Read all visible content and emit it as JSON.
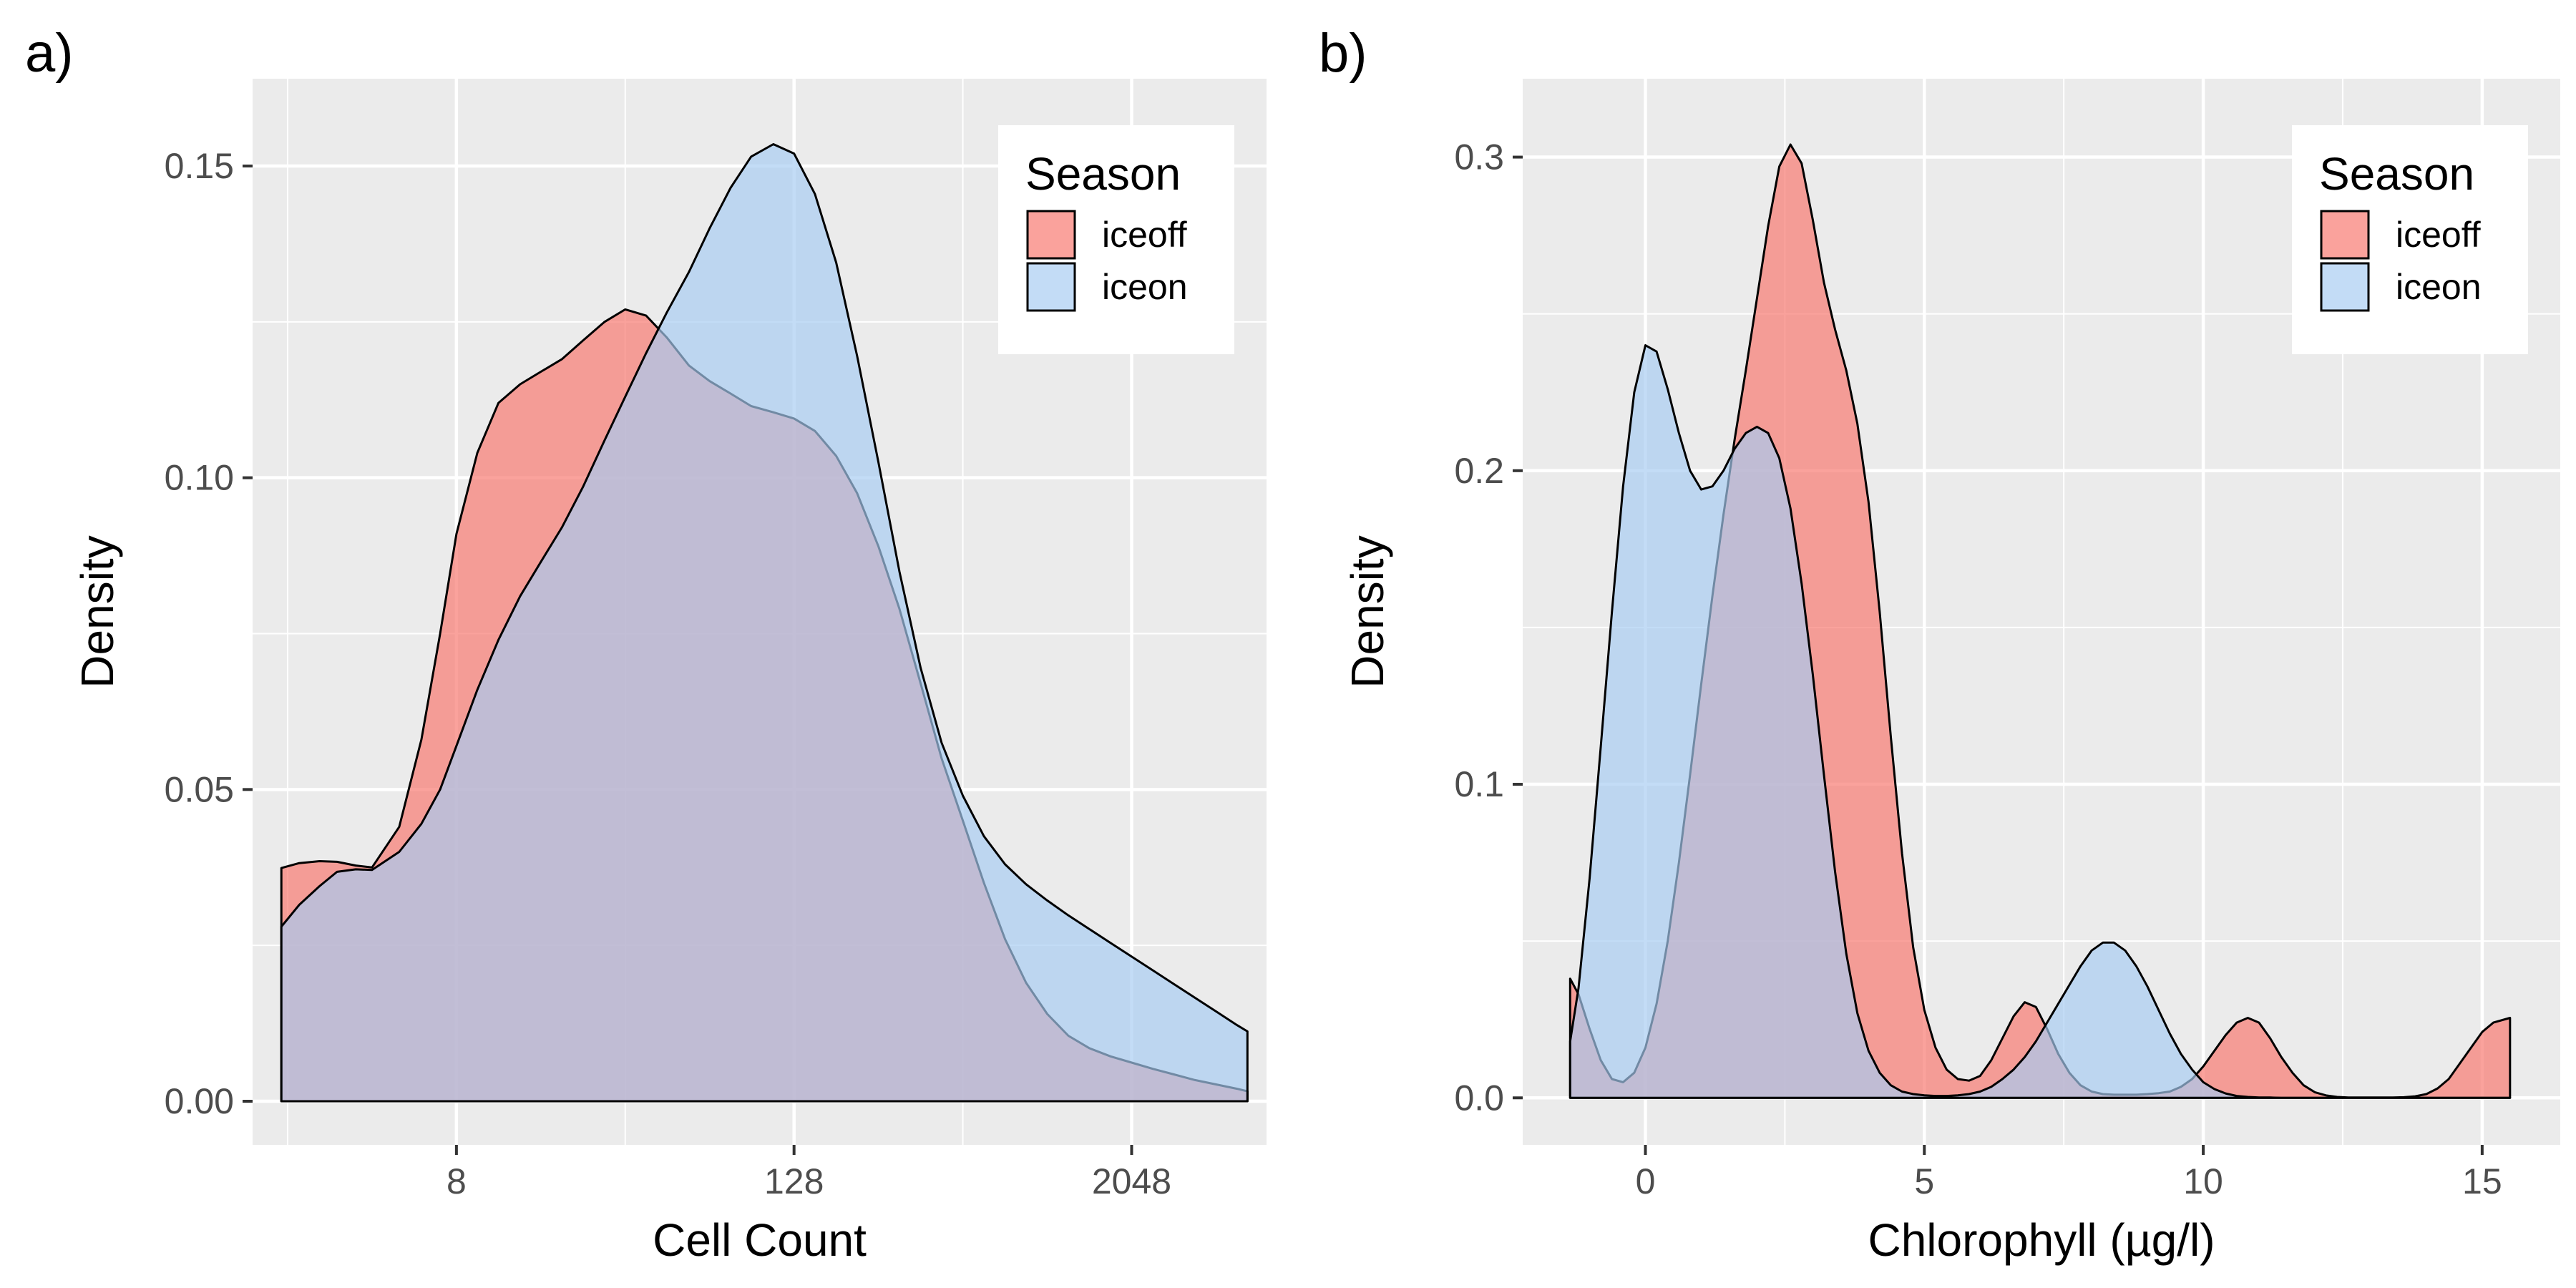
{
  "chart_data": [
    {
      "panel_label": "a)",
      "type": "area",
      "subtype": "density",
      "xlabel": "Cell Count",
      "ylabel": "Density",
      "x_scale": "log2",
      "xlim": [
        1.5,
        6200
      ],
      "ylim": [
        -0.007,
        0.164
      ],
      "x_ticks": [
        8,
        128,
        2048
      ],
      "x_tick_labels": [
        "8",
        "128",
        "2048"
      ],
      "y_ticks": [
        0.0,
        0.05,
        0.1,
        0.15
      ],
      "y_tick_labels": [
        "0.00",
        "0.05",
        "0.10",
        "0.15"
      ],
      "grid": true,
      "legend": {
        "title": "Season",
        "position": "top-right",
        "entries": [
          "iceoff",
          "iceon"
        ]
      },
      "series": [
        {
          "name": "iceoff",
          "color": "#F8766D",
          "x": [
            1.9,
            2.2,
            2.6,
            3.0,
            3.5,
            4.0,
            5.0,
            6.0,
            7.0,
            8.0,
            9.5,
            11.3,
            13.5,
            16.0,
            19.0,
            22.6,
            27.0,
            32.0,
            38.0,
            45.0,
            54.0,
            64.0,
            76.0,
            90.0,
            108.0,
            128.0,
            152.0,
            181.0,
            215.0,
            256.0,
            304.0,
            362.0,
            430.0,
            512.0,
            609.0,
            724.0,
            861.0,
            1024.0,
            1218.0,
            1448.0,
            1722.0,
            2048.0,
            2435.0,
            2896.0,
            3444.0,
            4096.0,
            4871.0,
            5300.0
          ],
          "values": [
            0.0374,
            0.0382,
            0.0385,
            0.0384,
            0.0378,
            0.0375,
            0.044,
            0.058,
            0.075,
            0.091,
            0.104,
            0.112,
            0.115,
            0.117,
            0.119,
            0.122,
            0.125,
            0.127,
            0.126,
            0.1225,
            0.118,
            0.1155,
            0.1135,
            0.1115,
            0.1105,
            0.1095,
            0.1075,
            0.1035,
            0.0975,
            0.089,
            0.079,
            0.067,
            0.055,
            0.045,
            0.035,
            0.026,
            0.019,
            0.014,
            0.0105,
            0.0085,
            0.0072,
            0.0062,
            0.0052,
            0.0043,
            0.0034,
            0.0027,
            0.002,
            0.0016
          ]
        },
        {
          "name": "iceon",
          "color": "#A6CBF2",
          "x": [
            1.9,
            2.2,
            2.6,
            3.0,
            3.5,
            4.0,
            5.0,
            6.0,
            7.0,
            8.0,
            9.5,
            11.3,
            13.5,
            16.0,
            19.0,
            22.6,
            27.0,
            32.0,
            38.0,
            45.0,
            54.0,
            64.0,
            76.0,
            90.0,
            108.0,
            128.0,
            152.0,
            181.0,
            215.0,
            256.0,
            304.0,
            362.0,
            430.0,
            512.0,
            609.0,
            724.0,
            861.0,
            1024.0,
            1218.0,
            1448.0,
            1722.0,
            2048.0,
            2435.0,
            2896.0,
            3444.0,
            4096.0,
            4871.0,
            5300.0
          ],
          "values": [
            0.028,
            0.0315,
            0.0345,
            0.0368,
            0.0372,
            0.0371,
            0.04,
            0.0445,
            0.05,
            0.057,
            0.066,
            0.074,
            0.081,
            0.0865,
            0.092,
            0.0985,
            0.106,
            0.113,
            0.12,
            0.1265,
            0.133,
            0.14,
            0.1465,
            0.1515,
            0.1535,
            0.152,
            0.1455,
            0.1345,
            0.1195,
            0.1025,
            0.085,
            0.0695,
            0.0575,
            0.049,
            0.0425,
            0.038,
            0.0348,
            0.0322,
            0.0298,
            0.0276,
            0.0254,
            0.0232,
            0.021,
            0.0188,
            0.0166,
            0.0144,
            0.0122,
            0.0112
          ]
        }
      ]
    },
    {
      "panel_label": "b)",
      "type": "area",
      "subtype": "density",
      "xlabel": "Chlorophyll (µg/l)",
      "ylabel": "Density",
      "x_scale": "linear",
      "xlim": [
        -2.2,
        16.4
      ],
      "ylim": [
        -0.015,
        0.325
      ],
      "x_ticks": [
        0,
        5,
        10,
        15
      ],
      "x_tick_labels": [
        "0",
        "5",
        "10",
        "15"
      ],
      "y_ticks": [
        0.0,
        0.1,
        0.2,
        0.3
      ],
      "y_tick_labels": [
        "0.0",
        "0.1",
        "0.2",
        "0.3"
      ],
      "grid": true,
      "legend": {
        "title": "Season",
        "position": "top-right",
        "entries": [
          "iceoff",
          "iceon"
        ]
      },
      "series": [
        {
          "name": "iceoff",
          "color": "#F8766D",
          "x": [
            -1.35,
            -1.2,
            -1.0,
            -0.8,
            -0.6,
            -0.4,
            -0.2,
            0.0,
            0.2,
            0.4,
            0.6,
            0.8,
            1.0,
            1.2,
            1.4,
            1.6,
            1.8,
            2.0,
            2.2,
            2.4,
            2.6,
            2.8,
            3.0,
            3.2,
            3.4,
            3.6,
            3.8,
            4.0,
            4.2,
            4.4,
            4.6,
            4.8,
            5.0,
            5.2,
            5.4,
            5.6,
            5.8,
            6.0,
            6.2,
            6.4,
            6.6,
            6.8,
            7.0,
            7.2,
            7.4,
            7.6,
            7.8,
            8.0,
            8.2,
            8.4,
            8.6,
            8.8,
            9.0,
            9.2,
            9.4,
            9.6,
            9.8,
            10.0,
            10.2,
            10.4,
            10.6,
            10.8,
            11.0,
            11.2,
            11.4,
            11.6,
            11.8,
            12.0,
            12.2,
            12.4,
            12.6,
            12.8,
            13.0,
            13.2,
            13.4,
            13.6,
            13.8,
            14.0,
            14.2,
            14.4,
            14.6,
            14.8,
            15.0,
            15.2,
            15.5
          ],
          "values": [
            0.038,
            0.033,
            0.022,
            0.012,
            0.006,
            0.005,
            0.008,
            0.016,
            0.03,
            0.05,
            0.075,
            0.103,
            0.132,
            0.16,
            0.186,
            0.21,
            0.232,
            0.255,
            0.278,
            0.297,
            0.304,
            0.298,
            0.28,
            0.26,
            0.245,
            0.232,
            0.215,
            0.19,
            0.155,
            0.115,
            0.078,
            0.048,
            0.028,
            0.016,
            0.009,
            0.006,
            0.0055,
            0.007,
            0.012,
            0.019,
            0.026,
            0.0305,
            0.029,
            0.022,
            0.014,
            0.008,
            0.004,
            0.002,
            0.0012,
            0.001,
            0.001,
            0.001,
            0.0012,
            0.0015,
            0.002,
            0.0035,
            0.006,
            0.01,
            0.015,
            0.02,
            0.024,
            0.0255,
            0.024,
            0.019,
            0.013,
            0.008,
            0.004,
            0.0018,
            0.0008,
            0.0003,
            0.0001,
            0.0001,
            0.0001,
            0.0001,
            0.0001,
            0.0002,
            0.0005,
            0.0012,
            0.003,
            0.006,
            0.011,
            0.016,
            0.021,
            0.024,
            0.0255
          ]
        },
        {
          "name": "iceon",
          "color": "#A6CBF2",
          "x": [
            -1.35,
            -1.2,
            -1.0,
            -0.8,
            -0.6,
            -0.4,
            -0.2,
            0.0,
            0.2,
            0.4,
            0.6,
            0.8,
            1.0,
            1.2,
            1.4,
            1.6,
            1.8,
            2.0,
            2.2,
            2.4,
            2.6,
            2.8,
            3.0,
            3.2,
            3.4,
            3.6,
            3.8,
            4.0,
            4.2,
            4.4,
            4.6,
            4.8,
            5.0,
            5.2,
            5.4,
            5.6,
            5.8,
            6.0,
            6.2,
            6.4,
            6.6,
            6.8,
            7.0,
            7.2,
            7.4,
            7.6,
            7.8,
            8.0,
            8.2,
            8.4,
            8.6,
            8.8,
            9.0,
            9.2,
            9.4,
            9.6,
            9.8,
            10.0,
            10.2,
            10.4,
            10.6,
            10.8,
            11.0,
            11.2,
            11.4,
            11.6,
            11.8,
            12.0,
            12.2,
            12.4,
            12.6,
            12.8,
            13.0,
            13.2,
            13.4,
            13.6,
            13.8,
            14.0,
            14.2,
            14.4,
            14.6,
            14.8,
            15.0,
            15.2,
            15.5
          ],
          "values": [
            0.018,
            0.035,
            0.07,
            0.112,
            0.155,
            0.195,
            0.225,
            0.24,
            0.238,
            0.226,
            0.212,
            0.2,
            0.194,
            0.195,
            0.2,
            0.207,
            0.212,
            0.214,
            0.212,
            0.204,
            0.188,
            0.164,
            0.135,
            0.103,
            0.072,
            0.046,
            0.027,
            0.015,
            0.008,
            0.004,
            0.002,
            0.0012,
            0.0008,
            0.0006,
            0.0006,
            0.0008,
            0.0012,
            0.002,
            0.0035,
            0.006,
            0.009,
            0.013,
            0.018,
            0.024,
            0.03,
            0.036,
            0.042,
            0.047,
            0.0495,
            0.0495,
            0.047,
            0.042,
            0.0355,
            0.028,
            0.0205,
            0.014,
            0.009,
            0.005,
            0.0028,
            0.0014,
            0.0006,
            0.0003,
            0.0001,
            0.0001,
            0.0,
            0.0,
            0.0,
            0.0,
            0.0,
            0.0,
            0.0,
            0.0,
            0.0,
            0.0,
            0.0,
            0.0,
            0.0,
            0.0,
            0.0,
            0.0,
            0.0,
            0.0,
            0.0,
            0.0,
            0.0
          ]
        }
      ]
    }
  ]
}
